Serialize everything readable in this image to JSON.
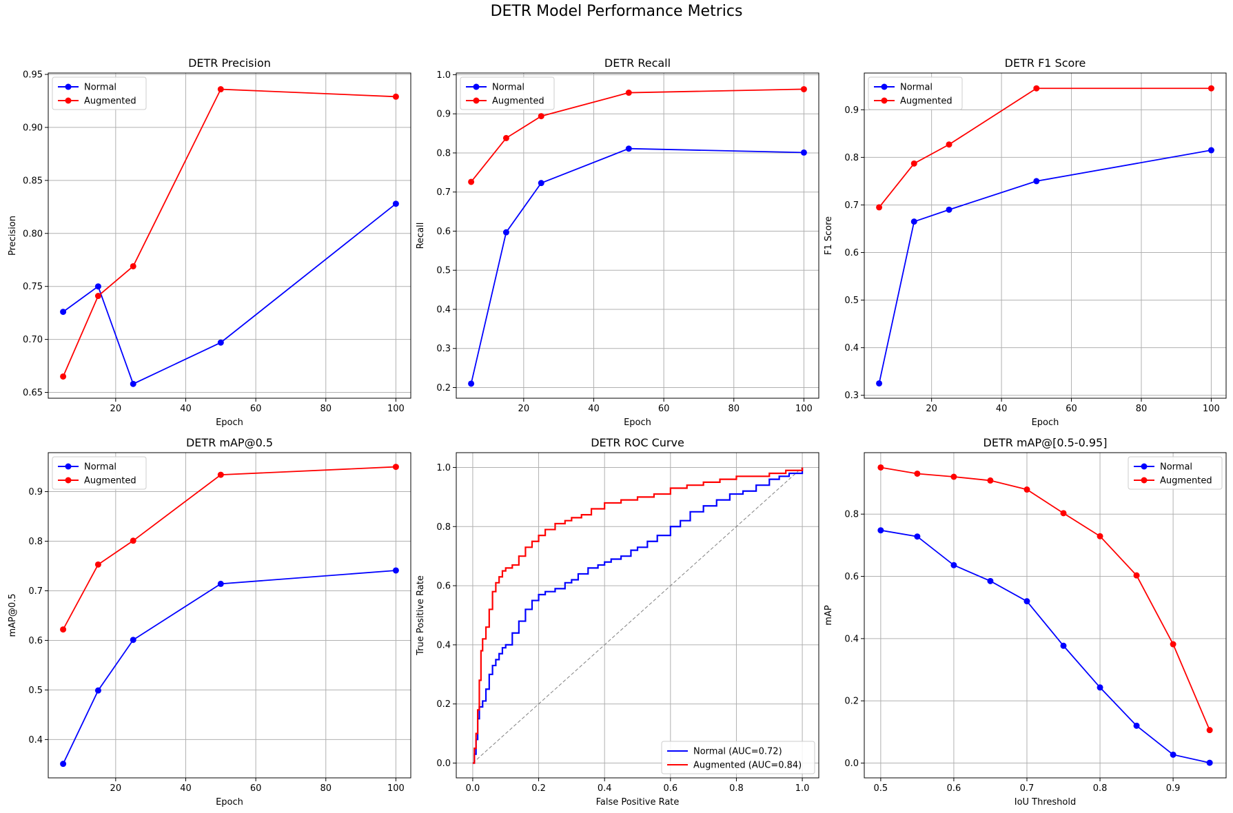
{
  "figure": {
    "title": "DETR Model Performance Metrics"
  },
  "colors": {
    "normal": "#0000ff",
    "augmented": "#ff0000",
    "grid": "#b0b0b0",
    "diagonal": "#808080"
  },
  "chart_data": [
    {
      "type": "line",
      "title": "DETR Precision",
      "xlabel": "Epoch",
      "ylabel": "Precision",
      "x": [
        5,
        15,
        25,
        50,
        100
      ],
      "xlim": [
        0.75,
        104.25
      ],
      "ylim": [
        0.6445,
        0.9513
      ],
      "xticks": [
        20,
        40,
        60,
        80,
        100
      ],
      "yticks": [
        0.65,
        0.7,
        0.75,
        0.8,
        0.85,
        0.9,
        0.95
      ],
      "tick_decimals": 2,
      "grid": true,
      "legend": "upper-left",
      "series": [
        {
          "name": "Normal",
          "color": "#0000ff",
          "values": [
            0.726,
            0.75,
            0.658,
            0.697,
            0.828
          ]
        },
        {
          "name": "Augmented",
          "color": "#ff0000",
          "values": [
            0.665,
            0.741,
            0.769,
            0.936,
            0.929
          ]
        }
      ]
    },
    {
      "type": "line",
      "title": "DETR Recall",
      "xlabel": "Epoch",
      "ylabel": "Recall",
      "x": [
        5,
        15,
        25,
        50,
        100
      ],
      "xlim": [
        0.75,
        104.25
      ],
      "ylim": [
        0.1727,
        1.0043
      ],
      "xticks": [
        20,
        40,
        60,
        80,
        100
      ],
      "yticks": [
        0.2,
        0.3,
        0.4,
        0.5,
        0.6,
        0.7,
        0.8,
        0.9,
        1.0
      ],
      "tick_decimals": 1,
      "grid": true,
      "legend": "upper-left",
      "series": [
        {
          "name": "Normal",
          "color": "#0000ff",
          "values": [
            0.21,
            0.597,
            0.723,
            0.811,
            0.801
          ]
        },
        {
          "name": "Augmented",
          "color": "#ff0000",
          "values": [
            0.726,
            0.838,
            0.894,
            0.954,
            0.963
          ]
        }
      ]
    },
    {
      "type": "line",
      "title": "DETR F1 Score",
      "xlabel": "Epoch",
      "ylabel": "F1 Score",
      "x": [
        5,
        15,
        25,
        50,
        100
      ],
      "xlim": [
        0.75,
        104.25
      ],
      "ylim": [
        0.2938,
        0.9772
      ],
      "xticks": [
        20,
        40,
        60,
        80,
        100
      ],
      "yticks": [
        0.3,
        0.4,
        0.5,
        0.6,
        0.7,
        0.8,
        0.9
      ],
      "tick_decimals": 1,
      "grid": true,
      "legend": "upper-left",
      "series": [
        {
          "name": "Normal",
          "color": "#0000ff",
          "values": [
            0.325,
            0.665,
            0.69,
            0.75,
            0.815
          ]
        },
        {
          "name": "Augmented",
          "color": "#ff0000",
          "values": [
            0.695,
            0.787,
            0.827,
            0.945,
            0.945
          ]
        }
      ]
    },
    {
      "type": "line",
      "title": "DETR mAP@0.5",
      "xlabel": "Epoch",
      "ylabel": "mAP@0.5",
      "x": [
        5,
        15,
        25,
        50,
        100
      ],
      "xlim": [
        0.75,
        104.25
      ],
      "ylim": [
        0.3227,
        0.9786
      ],
      "xticks": [
        20,
        40,
        60,
        80,
        100
      ],
      "yticks": [
        0.4,
        0.5,
        0.6,
        0.7,
        0.8,
        0.9
      ],
      "tick_decimals": 1,
      "grid": true,
      "legend": "upper-left",
      "series": [
        {
          "name": "Normal",
          "color": "#0000ff",
          "values": [
            0.351,
            0.499,
            0.601,
            0.714,
            0.741
          ]
        },
        {
          "name": "Augmented",
          "color": "#ff0000",
          "values": [
            0.622,
            0.753,
            0.801,
            0.934,
            0.95
          ]
        }
      ]
    },
    {
      "type": "line",
      "title": "DETR ROC Curve",
      "xlabel": "False Positive Rate",
      "ylabel": "True Positive Rate",
      "xlim": [
        -0.05,
        1.05
      ],
      "ylim": [
        -0.05,
        1.05
      ],
      "xticks": [
        0.0,
        0.2,
        0.4,
        0.6,
        0.8,
        1.0
      ],
      "yticks": [
        0.0,
        0.2,
        0.4,
        0.6,
        0.8,
        1.0
      ],
      "tick_decimals": 1,
      "grid": true,
      "legend": "lower-right",
      "diagonal": true,
      "series": [
        {
          "name": "Normal (AUC=0.72)",
          "color": "#0000ff",
          "x": [
            0.0,
            0.005,
            0.01,
            0.015,
            0.02,
            0.03,
            0.04,
            0.05,
            0.06,
            0.07,
            0.08,
            0.09,
            0.1,
            0.12,
            0.14,
            0.16,
            0.18,
            0.2,
            0.22,
            0.25,
            0.28,
            0.3,
            0.32,
            0.35,
            0.38,
            0.4,
            0.42,
            0.45,
            0.48,
            0.5,
            0.53,
            0.56,
            0.6,
            0.63,
            0.66,
            0.7,
            0.74,
            0.78,
            0.82,
            0.86,
            0.9,
            0.93,
            0.96,
            1.0
          ],
          "y": [
            0.0,
            0.03,
            0.08,
            0.15,
            0.19,
            0.21,
            0.25,
            0.3,
            0.33,
            0.35,
            0.37,
            0.39,
            0.4,
            0.44,
            0.48,
            0.52,
            0.55,
            0.57,
            0.58,
            0.59,
            0.61,
            0.62,
            0.64,
            0.66,
            0.67,
            0.68,
            0.69,
            0.7,
            0.72,
            0.73,
            0.75,
            0.77,
            0.8,
            0.82,
            0.85,
            0.87,
            0.89,
            0.91,
            0.92,
            0.94,
            0.96,
            0.97,
            0.98,
            1.0
          ]
        },
        {
          "name": "Augmented (AUC=0.84)",
          "color": "#ff0000",
          "x": [
            0.0,
            0.005,
            0.01,
            0.015,
            0.02,
            0.025,
            0.03,
            0.04,
            0.05,
            0.06,
            0.07,
            0.08,
            0.09,
            0.1,
            0.12,
            0.14,
            0.16,
            0.18,
            0.2,
            0.22,
            0.25,
            0.28,
            0.3,
            0.33,
            0.36,
            0.4,
            0.45,
            0.5,
            0.55,
            0.6,
            0.65,
            0.7,
            0.75,
            0.8,
            0.85,
            0.9,
            0.95,
            1.0
          ],
          "y": [
            0.0,
            0.05,
            0.1,
            0.18,
            0.28,
            0.38,
            0.42,
            0.46,
            0.52,
            0.58,
            0.61,
            0.63,
            0.65,
            0.66,
            0.67,
            0.7,
            0.73,
            0.75,
            0.77,
            0.79,
            0.81,
            0.82,
            0.83,
            0.84,
            0.86,
            0.88,
            0.89,
            0.9,
            0.91,
            0.93,
            0.94,
            0.95,
            0.96,
            0.97,
            0.97,
            0.98,
            0.99,
            1.0
          ]
        }
      ]
    },
    {
      "type": "line",
      "title": "DETR mAP@[0.5-0.95]",
      "xlabel": "IoU Threshold",
      "ylabel": "mAP",
      "x": [
        0.5,
        0.55,
        0.6,
        0.65,
        0.7,
        0.75,
        0.8,
        0.85,
        0.9,
        0.95
      ],
      "xlim": [
        0.4775,
        0.9725
      ],
      "ylim": [
        -0.0475,
        0.9975
      ],
      "xticks": [
        0.5,
        0.6,
        0.7,
        0.8,
        0.9
      ],
      "yticks": [
        0.0,
        0.2,
        0.4,
        0.6,
        0.8
      ],
      "tick_decimals": 1,
      "grid": true,
      "legend": "upper-right",
      "series": [
        {
          "name": "Normal",
          "color": "#0000ff",
          "values": [
            0.748,
            0.728,
            0.636,
            0.585,
            0.52,
            0.377,
            0.243,
            0.12,
            0.027,
            0.001
          ]
        },
        {
          "name": "Augmented",
          "color": "#ff0000",
          "values": [
            0.95,
            0.93,
            0.92,
            0.908,
            0.879,
            0.803,
            0.729,
            0.603,
            0.382,
            0.106
          ]
        }
      ]
    }
  ]
}
